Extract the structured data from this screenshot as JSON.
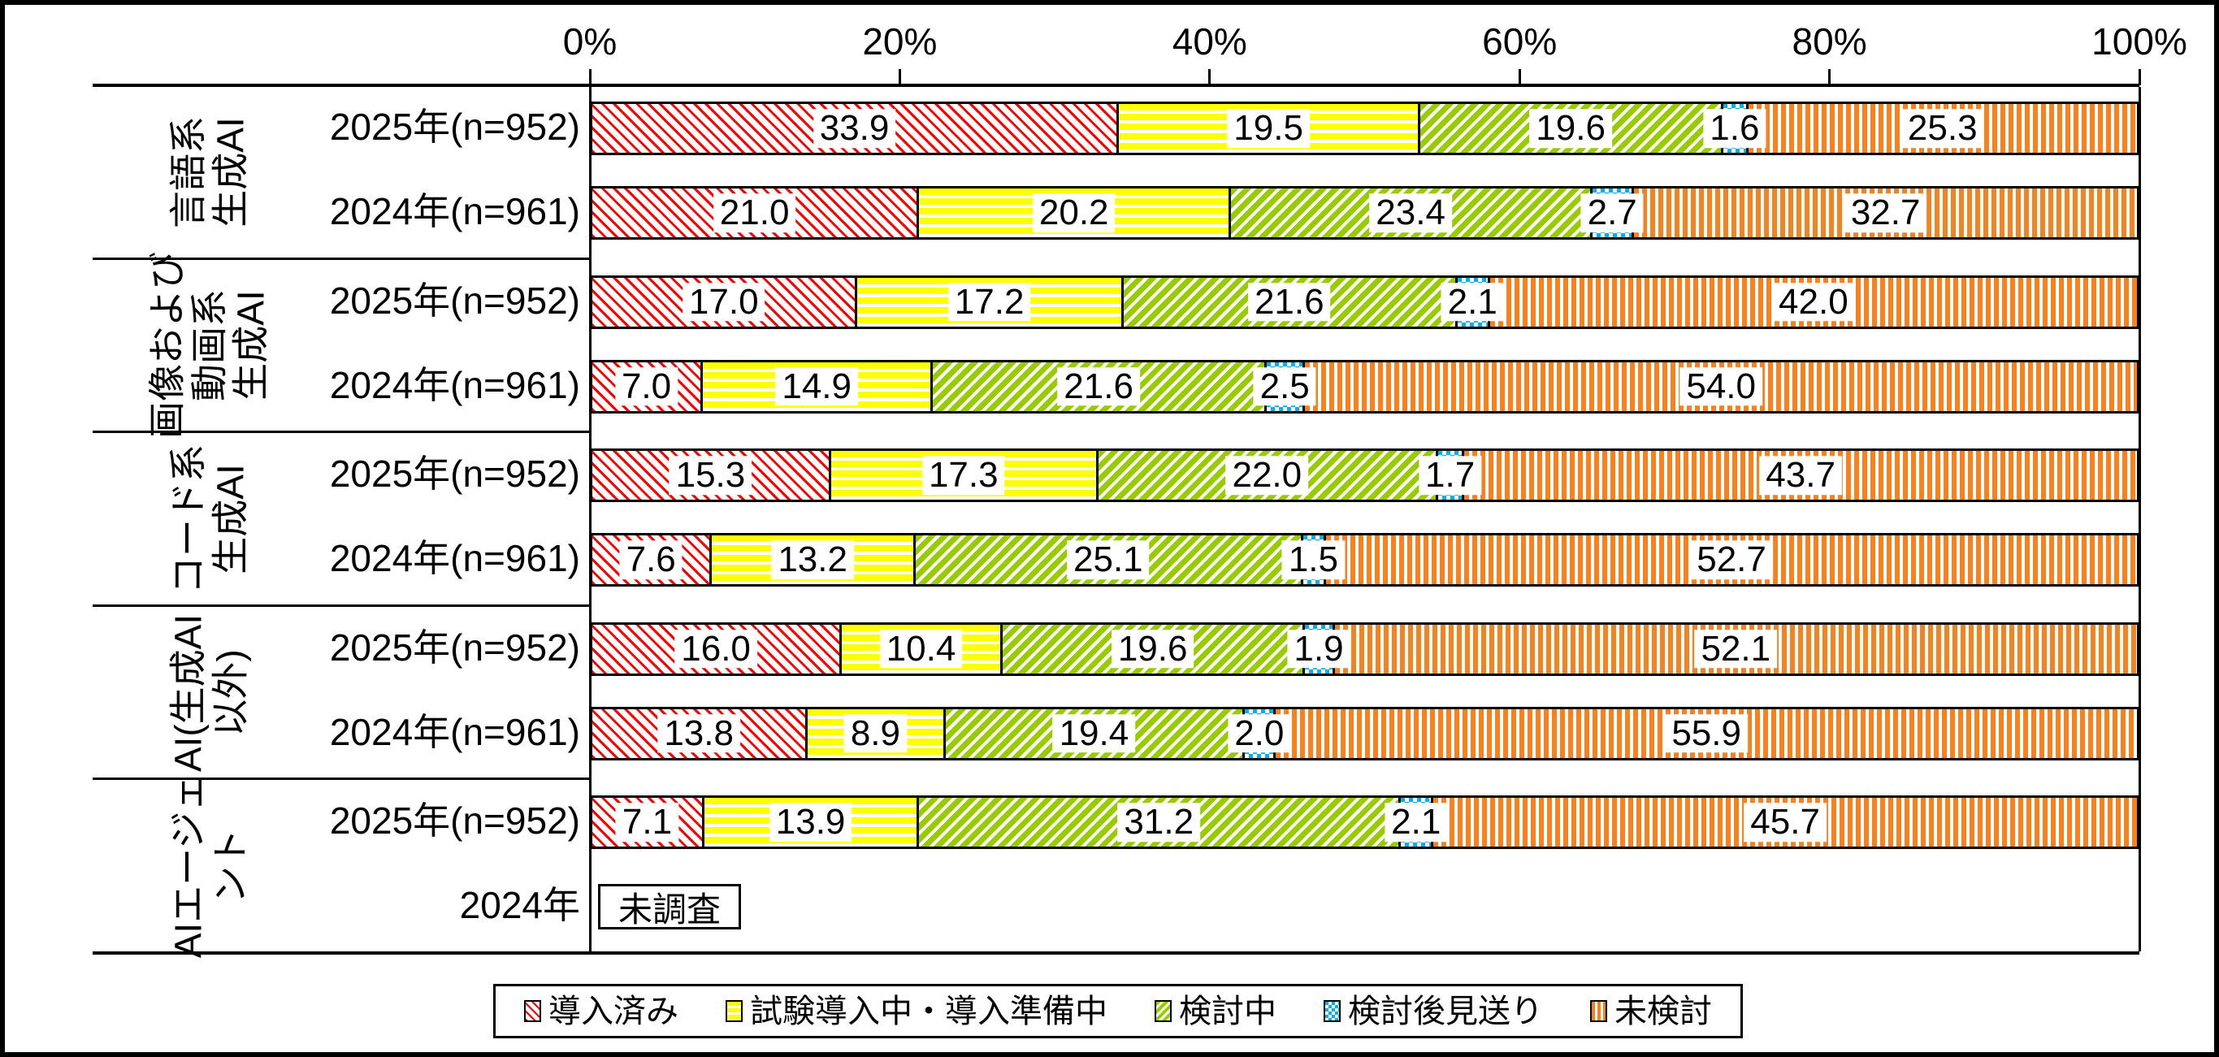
{
  "axis": {
    "tick_labels": [
      "0%",
      "20%",
      "40%",
      "60%",
      "80%",
      "100%"
    ]
  },
  "legend": {
    "items": [
      {
        "key": "adopted",
        "label": "導入済み",
        "color": "#FF0000",
        "pattern": "diagonal-down-hatch"
      },
      {
        "key": "trial",
        "label": "試験導入中・導入準備中",
        "color": "#FFFF00",
        "pattern": "horizontal-stripes"
      },
      {
        "key": "considering",
        "label": "検討中",
        "color": "#99CC00",
        "pattern": "diagonal-up-hatch"
      },
      {
        "key": "postponed",
        "label": "検討後見送り",
        "color": "#00B0F0",
        "pattern": "checker-dots"
      },
      {
        "key": "not_considered",
        "label": "未検討",
        "color": "#F5821F",
        "pattern": "vertical-stripes"
      }
    ]
  },
  "chart_data": {
    "type": "bar",
    "stacked": true,
    "orientation": "horizontal",
    "unit": "%",
    "xlim": [
      0,
      100
    ],
    "x_tick_values": [
      0,
      20,
      40,
      60,
      80,
      100
    ],
    "grid": false,
    "legend_position": "bottom",
    "series_names": [
      "導入済み",
      "試験導入中・導入準備中",
      "検討中",
      "検討後見送り",
      "未検討"
    ],
    "series_colors": [
      "#FF0000",
      "#FFFF00",
      "#99CC00",
      "#00B0F0",
      "#F5821F"
    ],
    "not_surveyed_label": "未調査",
    "groups": [
      {
        "category_lines": [
          "言語系",
          "生成AI"
        ],
        "rows": [
          {
            "label": "2025年(n=952)",
            "values": [
              33.9,
              19.5,
              19.6,
              1.6,
              25.3
            ]
          },
          {
            "label": "2024年(n=961)",
            "values": [
              21.0,
              20.2,
              23.4,
              2.7,
              32.7
            ]
          }
        ]
      },
      {
        "category_lines": [
          "画像および",
          "動画系",
          "生成AI"
        ],
        "rows": [
          {
            "label": "2025年(n=952)",
            "values": [
              17.0,
              17.2,
              21.6,
              2.1,
              42.0
            ]
          },
          {
            "label": "2024年(n=961)",
            "values": [
              7.0,
              14.9,
              21.6,
              2.5,
              54.0
            ]
          }
        ]
      },
      {
        "category_lines": [
          "コード系",
          "生成AI"
        ],
        "rows": [
          {
            "label": "2025年(n=952)",
            "values": [
              15.3,
              17.3,
              22.0,
              1.7,
              43.7
            ]
          },
          {
            "label": "2024年(n=961)",
            "values": [
              7.6,
              13.2,
              25.1,
              1.5,
              52.7
            ]
          }
        ]
      },
      {
        "category_lines": [
          "AI(生成AI",
          "以外)"
        ],
        "rows": [
          {
            "label": "2025年(n=952)",
            "values": [
              16.0,
              10.4,
              19.6,
              1.9,
              52.1
            ]
          },
          {
            "label": "2024年(n=961)",
            "values": [
              13.8,
              8.9,
              19.4,
              2.0,
              55.9
            ]
          }
        ]
      },
      {
        "category_lines": [
          "AIエージェ",
          "ント"
        ],
        "rows": [
          {
            "label": "2025年(n=952)",
            "values": [
              7.1,
              13.9,
              31.2,
              2.1,
              45.7
            ]
          },
          {
            "label": "2024年",
            "values": null,
            "note": "未調査"
          }
        ]
      }
    ]
  }
}
